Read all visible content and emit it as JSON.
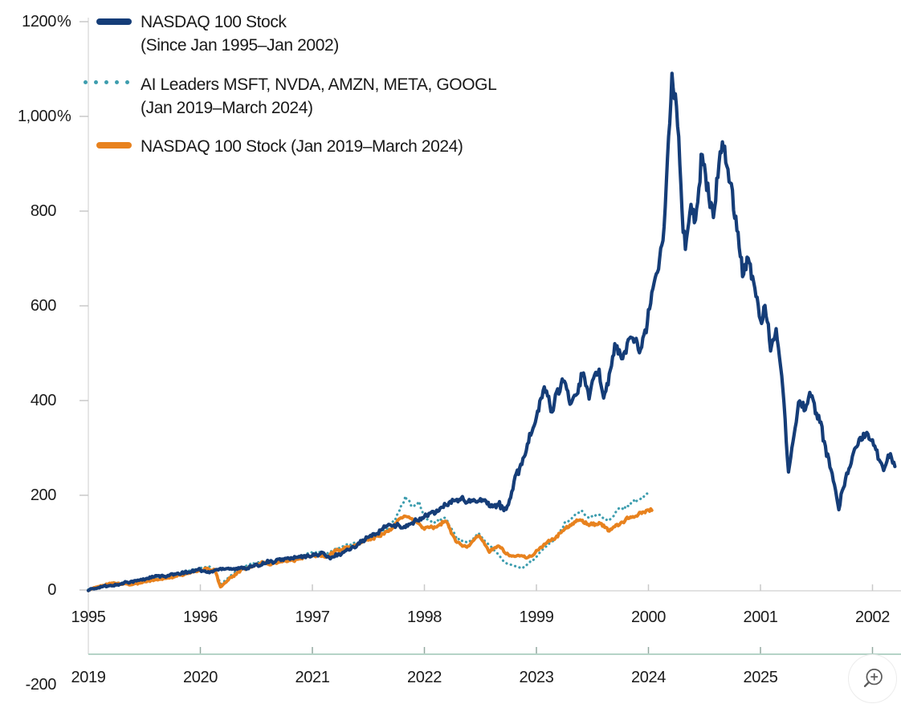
{
  "chart_data": {
    "type": "line",
    "y_axis": {
      "range": [
        -200,
        1200
      ],
      "ticks": [
        {
          "value": 1200,
          "label": "1200",
          "suffix": "%"
        },
        {
          "value": 1000,
          "label": "1,000",
          "suffix": "%"
        },
        {
          "value": 800,
          "label": "800"
        },
        {
          "value": 600,
          "label": "600"
        },
        {
          "value": 400,
          "label": "400"
        },
        {
          "value": 200,
          "label": "200"
        },
        {
          "value": 0,
          "label": "0"
        },
        {
          "value": -200,
          "label": "-200"
        }
      ]
    },
    "x_axis_top": {
      "unit": "year",
      "labels": [
        "1995",
        "1996",
        "1997",
        "1998",
        "1999",
        "2000",
        "2001",
        "2002"
      ]
    },
    "x_axis_bottom": {
      "unit": "year",
      "labels": [
        "2019",
        "2020",
        "2021",
        "2022",
        "2023",
        "2024",
        "2025"
      ]
    },
    "series": [
      {
        "id": "nasdaq-100-1995-2002",
        "name": "NASDAQ 100 Stock (Since Jan 1995–Jan 2002)",
        "legend_line1": "NASDAQ 100 Stock",
        "legend_line2": "(Since Jan 1995–Jan 2002)",
        "color": "#153d78",
        "style": "solid",
        "width": 4.2,
        "noise": 2.2,
        "points": [
          [
            0,
            0
          ],
          [
            0.08,
            5
          ],
          [
            0.17,
            9
          ],
          [
            0.3,
            14
          ],
          [
            0.42,
            20
          ],
          [
            0.55,
            26
          ],
          [
            0.7,
            31
          ],
          [
            0.85,
            37
          ],
          [
            1.0,
            43
          ],
          [
            1.08,
            37
          ],
          [
            1.2,
            46
          ],
          [
            1.32,
            43
          ],
          [
            1.45,
            50
          ],
          [
            1.6,
            58
          ],
          [
            1.75,
            64
          ],
          [
            1.9,
            68
          ],
          [
            2.0,
            71
          ],
          [
            2.08,
            77
          ],
          [
            2.16,
            68
          ],
          [
            2.3,
            82
          ],
          [
            2.45,
            102
          ],
          [
            2.58,
            122
          ],
          [
            2.7,
            140
          ],
          [
            2.8,
            131
          ],
          [
            2.92,
            145
          ],
          [
            3.0,
            152
          ],
          [
            3.1,
            166
          ],
          [
            3.2,
            180
          ],
          [
            3.32,
            191
          ],
          [
            3.42,
            184
          ],
          [
            3.52,
            196
          ],
          [
            3.62,
            171
          ],
          [
            3.67,
            180
          ],
          [
            3.73,
            170
          ],
          [
            3.8,
            225
          ],
          [
            3.91,
            300
          ],
          [
            4.0,
            356
          ],
          [
            4.07,
            434
          ],
          [
            4.14,
            378
          ],
          [
            4.23,
            446
          ],
          [
            4.32,
            396
          ],
          [
            4.41,
            455
          ],
          [
            4.47,
            417
          ],
          [
            4.55,
            460
          ],
          [
            4.6,
            407
          ],
          [
            4.66,
            468
          ],
          [
            4.7,
            515
          ],
          [
            4.77,
            482
          ],
          [
            4.82,
            525
          ],
          [
            4.86,
            541
          ],
          [
            4.91,
            499
          ],
          [
            4.98,
            560
          ],
          [
            5.03,
            622
          ],
          [
            5.07,
            660
          ],
          [
            5.1,
            705
          ],
          [
            5.14,
            780
          ],
          [
            5.18,
            940
          ],
          [
            5.21,
            1085
          ],
          [
            5.24,
            1035
          ],
          [
            5.27,
            950
          ],
          [
            5.3,
            790
          ],
          [
            5.33,
            705
          ],
          [
            5.38,
            820
          ],
          [
            5.42,
            765
          ],
          [
            5.48,
            918
          ],
          [
            5.52,
            850
          ],
          [
            5.58,
            786
          ],
          [
            5.62,
            880
          ],
          [
            5.65,
            935
          ],
          [
            5.7,
            890
          ],
          [
            5.75,
            830
          ],
          [
            5.8,
            740
          ],
          [
            5.84,
            665
          ],
          [
            5.89,
            700
          ],
          [
            5.94,
            640
          ],
          [
            6.0,
            575
          ],
          [
            6.04,
            598
          ],
          [
            6.09,
            518
          ],
          [
            6.14,
            544
          ],
          [
            6.19,
            452
          ],
          [
            6.25,
            244
          ],
          [
            6.3,
            328
          ],
          [
            6.35,
            404
          ],
          [
            6.4,
            390
          ],
          [
            6.45,
            412
          ],
          [
            6.5,
            370
          ],
          [
            6.55,
            334
          ],
          [
            6.6,
            284
          ],
          [
            6.65,
            232
          ],
          [
            6.7,
            178
          ],
          [
            6.75,
            224
          ],
          [
            6.8,
            262
          ],
          [
            6.85,
            298
          ],
          [
            6.9,
            316
          ],
          [
            6.95,
            330
          ],
          [
            7.0,
            312
          ],
          [
            7.05,
            280
          ],
          [
            7.1,
            254
          ],
          [
            7.15,
            288
          ],
          [
            7.2,
            262
          ]
        ]
      },
      {
        "id": "ai-leaders-2019-2024",
        "name": "AI Leaders MSFT, NVDA, AMZN, META, GOOGL (Jan 2019–March 2024)",
        "legend_line1": "AI Leaders MSFT, NVDA, AMZN, META, GOOGL",
        "legend_line2": "(Jan 2019–March 2024)",
        "color": "#3d9dae",
        "style": "dotted",
        "width": 3.1,
        "noise": 1.2,
        "points": [
          [
            0,
            0
          ],
          [
            0.15,
            10
          ],
          [
            0.24,
            16
          ],
          [
            0.39,
            13
          ],
          [
            0.48,
            20
          ],
          [
            0.63,
            26
          ],
          [
            0.77,
            32
          ],
          [
            0.87,
            40
          ],
          [
            0.97,
            44
          ],
          [
            1.06,
            50
          ],
          [
            1.13,
            44
          ],
          [
            1.18,
            12
          ],
          [
            1.26,
            28
          ],
          [
            1.35,
            44
          ],
          [
            1.45,
            55
          ],
          [
            1.55,
            62
          ],
          [
            1.64,
            59
          ],
          [
            1.74,
            64
          ],
          [
            1.84,
            69
          ],
          [
            1.93,
            75
          ],
          [
            2.03,
            80
          ],
          [
            2.13,
            77
          ],
          [
            2.22,
            89
          ],
          [
            2.32,
            95
          ],
          [
            2.42,
            102
          ],
          [
            2.51,
            112
          ],
          [
            2.61,
            121
          ],
          [
            2.71,
            140
          ],
          [
            2.77,
            162
          ],
          [
            2.83,
            194
          ],
          [
            2.9,
            177
          ],
          [
            2.95,
            188
          ],
          [
            3.0,
            150
          ],
          [
            3.09,
            143
          ],
          [
            3.19,
            153
          ],
          [
            3.29,
            108
          ],
          [
            3.38,
            99
          ],
          [
            3.48,
            120
          ],
          [
            3.58,
            94
          ],
          [
            3.67,
            72
          ],
          [
            3.72,
            55
          ],
          [
            3.82,
            50
          ],
          [
            3.87,
            47
          ],
          [
            3.96,
            62
          ],
          [
            4.06,
            86
          ],
          [
            4.16,
            106
          ],
          [
            4.25,
            138
          ],
          [
            4.35,
            160
          ],
          [
            4.4,
            168
          ],
          [
            4.46,
            152
          ],
          [
            4.54,
            158
          ],
          [
            4.64,
            147
          ],
          [
            4.74,
            172
          ],
          [
            4.83,
            182
          ],
          [
            4.93,
            194
          ],
          [
            5.0,
            203
          ]
        ]
      },
      {
        "id": "nasdaq-100-2019-2024",
        "name": "NASDAQ 100 Stock (Jan 2019–March 2024)",
        "legend_line1": "NASDAQ 100 Stock (Jan 2019–March 2024)",
        "legend_line2": "",
        "color": "#e8821e",
        "style": "solid",
        "width": 4,
        "noise": 1.5,
        "points": [
          [
            0,
            0
          ],
          [
            0.15,
            11
          ],
          [
            0.24,
            14
          ],
          [
            0.39,
            11
          ],
          [
            0.48,
            17
          ],
          [
            0.63,
            23
          ],
          [
            0.77,
            28
          ],
          [
            0.87,
            34
          ],
          [
            0.97,
            40
          ],
          [
            1.06,
            45
          ],
          [
            1.13,
            42
          ],
          [
            1.18,
            7
          ],
          [
            1.26,
            24
          ],
          [
            1.35,
            40
          ],
          [
            1.45,
            50
          ],
          [
            1.55,
            58
          ],
          [
            1.64,
            54
          ],
          [
            1.74,
            59
          ],
          [
            1.84,
            63
          ],
          [
            1.93,
            69
          ],
          [
            2.03,
            73
          ],
          [
            2.13,
            70
          ],
          [
            2.22,
            84
          ],
          [
            2.32,
            90
          ],
          [
            2.42,
            97
          ],
          [
            2.51,
            107
          ],
          [
            2.61,
            114
          ],
          [
            2.71,
            131
          ],
          [
            2.77,
            147
          ],
          [
            2.83,
            158
          ],
          [
            2.9,
            150
          ],
          [
            2.95,
            142
          ],
          [
            3.0,
            128
          ],
          [
            3.09,
            133
          ],
          [
            3.19,
            146
          ],
          [
            3.29,
            100
          ],
          [
            3.38,
            92
          ],
          [
            3.48,
            114
          ],
          [
            3.58,
            82
          ],
          [
            3.67,
            92
          ],
          [
            3.72,
            78
          ],
          [
            3.82,
            70
          ],
          [
            3.87,
            74
          ],
          [
            3.91,
            67
          ],
          [
            3.96,
            72
          ],
          [
            4.06,
            94
          ],
          [
            4.16,
            110
          ],
          [
            4.25,
            128
          ],
          [
            4.35,
            144
          ],
          [
            4.4,
            150
          ],
          [
            4.46,
            137
          ],
          [
            4.54,
            142
          ],
          [
            4.64,
            127
          ],
          [
            4.74,
            140
          ],
          [
            4.83,
            152
          ],
          [
            4.93,
            162
          ],
          [
            5.03,
            170
          ]
        ]
      }
    ],
    "layout_hints": {
      "grid": "off",
      "legend_position": "top-left",
      "dual_x_axes": true
    }
  },
  "controls": {
    "zoom_button_icon": "magnifier-plus-icon"
  }
}
